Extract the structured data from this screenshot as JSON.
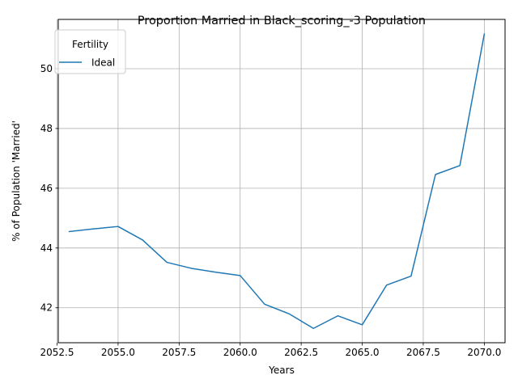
{
  "chart_data": {
    "type": "line",
    "title": "Proportion Married in Black_scoring_-3 Population",
    "xlabel": "Years",
    "ylabel": "% of Population 'Married'",
    "xlim": [
      2052.55,
      2070.85
    ],
    "ylim": [
      40.83,
      51.65
    ],
    "xticks": [
      2052.5,
      2055.0,
      2057.5,
      2060.0,
      2062.5,
      2065.0,
      2067.5,
      2070.0
    ],
    "xtick_labels": [
      "2052.5",
      "2055.0",
      "2057.5",
      "2060.0",
      "2062.5",
      "2065.0",
      "2067.5",
      "2070.0"
    ],
    "yticks": [
      42,
      44,
      46,
      48,
      50
    ],
    "ytick_labels": [
      "42",
      "44",
      "46",
      "48",
      "50"
    ],
    "grid": true,
    "legend": {
      "title": "Fertility",
      "position": "upper-left"
    },
    "series": [
      {
        "name": "Ideal",
        "color": "#1f77b4",
        "x": [
          2053,
          2054,
          2055,
          2056,
          2057,
          2058,
          2059,
          2060,
          2061,
          2062,
          2063,
          2064,
          2065,
          2066,
          2067,
          2068,
          2069,
          2070
        ],
        "y": [
          44.55,
          44.64,
          44.72,
          44.27,
          43.52,
          43.32,
          43.19,
          43.08,
          42.12,
          41.8,
          41.31,
          41.73,
          41.43,
          42.76,
          43.06,
          46.46,
          46.76,
          51.16
        ]
      }
    ]
  }
}
